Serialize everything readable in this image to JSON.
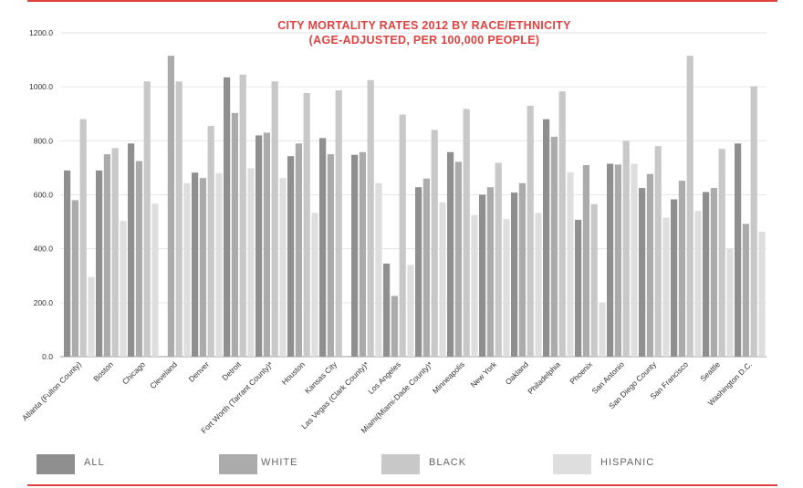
{
  "chart_data": {
    "type": "bar",
    "title_line1": "CITY MORTALITY RATES 2012 BY RACE/ETHNICITY",
    "title_line2": "(AGE-ADJUSTED, PER 100,000 PEOPLE)",
    "xlabel": "",
    "ylabel": "",
    "ylim": [
      0,
      1200
    ],
    "yticks": [
      "0.0",
      "200.0",
      "400.0",
      "600.0",
      "800.0",
      "1000.0",
      "1200.0"
    ],
    "grid": true,
    "legend_position": "bottom",
    "categories": [
      "Atlanta (Fulton County)",
      "Boston",
      "Chicago",
      "Cleveland",
      "Denver",
      "Detroit",
      "Fort Worth (Tarrant County)*",
      "Houston",
      "Kansas City",
      "Las Vegas (Clark County)*",
      "Los Angeles",
      "Miami(Miami-Dade County)*",
      "Minneapolis",
      "New York",
      "Oakland",
      "Philadelphia",
      "Phoenix",
      "San Antonio",
      "San Diego County",
      "San Francisco",
      "Seattle",
      "Washington D.C."
    ],
    "series": [
      {
        "name": "ALL",
        "color": "#8f8f8f",
        "values": [
          690,
          690,
          790,
          null,
          682,
          1035,
          820,
          743,
          810,
          748,
          345,
          628,
          758,
          600,
          608,
          880,
          507,
          715,
          625,
          583,
          610,
          790
        ]
      },
      {
        "name": "WHITE",
        "color": "#ababab",
        "values": [
          580,
          750,
          725,
          1115,
          662,
          903,
          830,
          790,
          750,
          758,
          225,
          660,
          722,
          628,
          643,
          815,
          710,
          712,
          677,
          652,
          625,
          492
        ]
      },
      {
        "name": "BLACK",
        "color": "#c8c8c8",
        "values": [
          880,
          773,
          1020,
          1020,
          855,
          1045,
          1020,
          977,
          987,
          1025,
          897,
          840,
          918,
          718,
          930,
          983,
          565,
          800,
          780,
          1115,
          770,
          1002
        ]
      },
      {
        "name": "HISPANIC",
        "color": "#dedede",
        "values": [
          295,
          503,
          567,
          643,
          680,
          698,
          662,
          533,
          null,
          643,
          340,
          572,
          525,
          510,
          533,
          683,
          200,
          715,
          515,
          540,
          400,
          463
        ]
      }
    ]
  }
}
